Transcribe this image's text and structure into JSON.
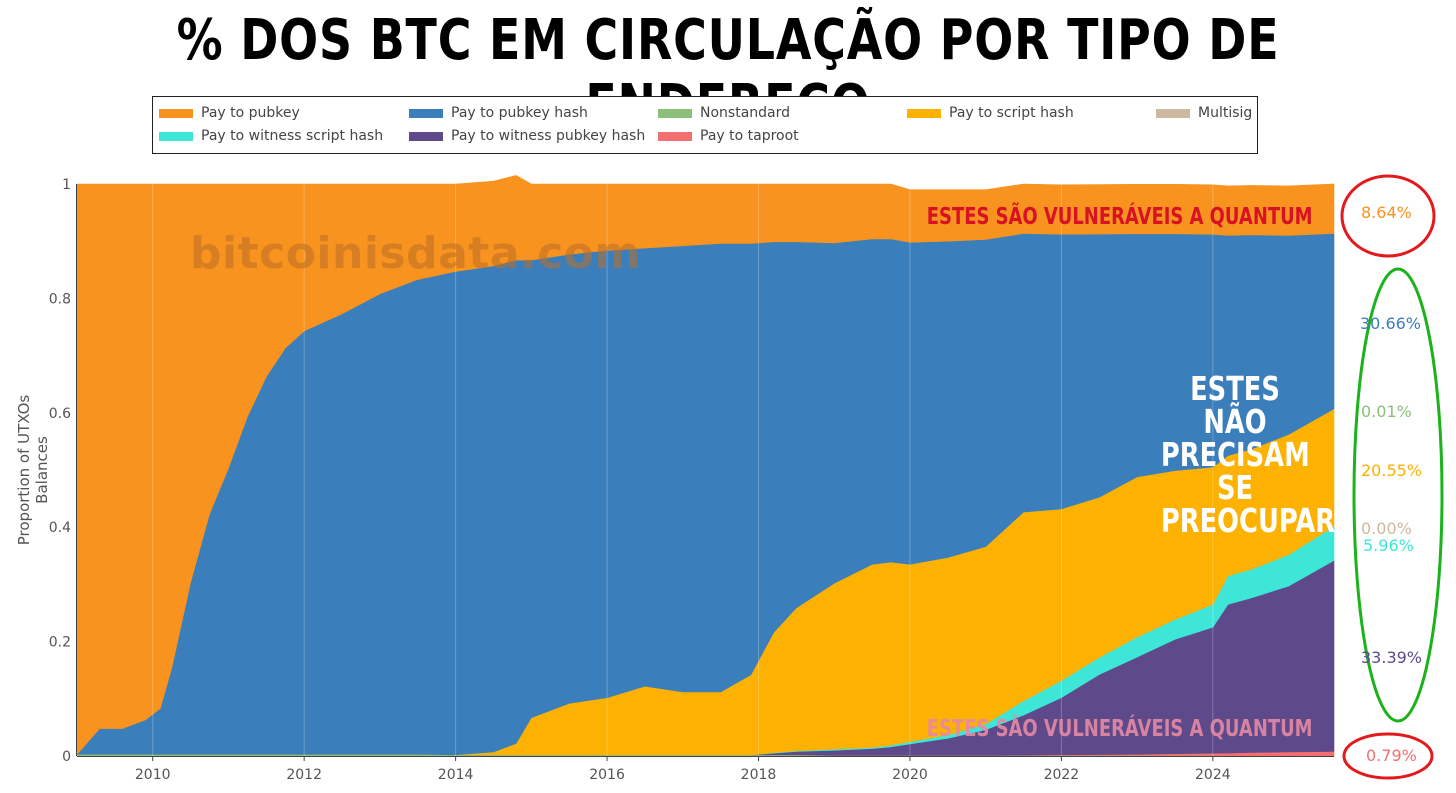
{
  "title": "% DOS BTC EM CIRCULAÇÃO POR TIPO DE ENDEREÇO",
  "watermark": "bitcoinisdata.com",
  "annotations": {
    "top": "ESTES SÃO VULNERÁVEIS A QUANTUM",
    "middle": [
      "ESTES NÃO",
      "PRECISAM",
      "SE",
      "PREOCUPAR"
    ],
    "bottom": "ESTES SÃO VULNERÁVEIS A QUANTUM"
  },
  "end_labels": [
    {
      "text": "8.64%",
      "color": "#f7931e",
      "circle": "red"
    },
    {
      "text": "30.66%",
      "color": "#3a7ebb",
      "circle": "green"
    },
    {
      "text": "0.01%",
      "color": "#8bbf7a",
      "circle": "green"
    },
    {
      "text": "20.55%",
      "color": "#fdb100",
      "circle": "green"
    },
    {
      "text": "0.00%",
      "color": "#cdb8a0",
      "circle": "green"
    },
    {
      "text": "5.96%",
      "color": "#3ee6d8",
      "circle": "green"
    },
    {
      "text": "33.39%",
      "color": "#5e4a8a",
      "circle": "green"
    },
    {
      "text": "0.79%",
      "color": "#f46f6f",
      "circle": "red"
    }
  ],
  "chart_data": {
    "type": "area",
    "stacked": true,
    "normalized": true,
    "title": "% DOS BTC EM CIRCULAÇÃO POR TIPO DE ENDEREÇO",
    "xlabel": "",
    "ylabel": "Proportion of UTXOs Balances",
    "xlim": [
      2009.0,
      2025.6
    ],
    "ylim": [
      0,
      1
    ],
    "x_ticks": [
      "2010",
      "2012",
      "2014",
      "2016",
      "2018",
      "2020",
      "2022",
      "2024"
    ],
    "y_ticks": [
      "0",
      "0.2",
      "0.4",
      "0.6",
      "0.8",
      "1"
    ],
    "legend_position": "top",
    "x": [
      2009.0,
      2009.3,
      2009.6,
      2009.9,
      2010.1,
      2010.25,
      2010.5,
      2010.75,
      2011.0,
      2011.25,
      2011.5,
      2011.75,
      2012.0,
      2012.5,
      2013.0,
      2013.5,
      2014.0,
      2014.5,
      2014.8,
      2015.0,
      2015.5,
      2016.0,
      2016.5,
      2017.0,
      2017.5,
      2017.9,
      2018.2,
      2018.5,
      2019.0,
      2019.5,
      2019.75,
      2020.0,
      2020.5,
      2021.0,
      2021.5,
      2022.0,
      2022.5,
      2023.0,
      2023.5,
      2024.0,
      2024.2,
      2024.5,
      2025.0,
      2025.6
    ],
    "series": [
      {
        "name": "Nonstandard",
        "color": "#8bbf7a",
        "values": [
          0.003,
          0.003,
          0.003,
          0.003,
          0.003,
          0.003,
          0.003,
          0.003,
          0.003,
          0.003,
          0.003,
          0.003,
          0.003,
          0.003,
          0.003,
          0.003,
          0.002,
          0.002,
          0.002,
          0.002,
          0.002,
          0.002,
          0.002,
          0.002,
          0.002,
          0.002,
          0.002,
          0.002,
          0.001,
          0.001,
          0.001,
          0.001,
          0.001,
          0.001,
          0.001,
          0.001,
          0.001,
          0.001,
          0.001,
          0.001,
          0.0001,
          0.0001,
          0.0001,
          0.0001
        ]
      },
      {
        "name": "Pay to taproot",
        "color": "#f46f6f",
        "values": [
          0,
          0,
          0,
          0,
          0,
          0,
          0,
          0,
          0,
          0,
          0,
          0,
          0,
          0,
          0,
          0,
          0,
          0,
          0,
          0,
          0,
          0,
          0,
          0,
          0,
          0,
          0,
          0,
          0,
          0,
          0,
          0,
          0,
          0,
          0.0005,
          0.001,
          0.0015,
          0.002,
          0.003,
          0.004,
          0.005,
          0.006,
          0.007,
          0.0079
        ]
      },
      {
        "name": "Pay to witness pubkey hash",
        "color": "#5e4a8a",
        "values": [
          0,
          0,
          0,
          0,
          0,
          0,
          0,
          0,
          0,
          0,
          0,
          0,
          0,
          0,
          0,
          0,
          0,
          0,
          0,
          0,
          0,
          0,
          0,
          0,
          0,
          0,
          0.003,
          0.006,
          0.009,
          0.012,
          0.015,
          0.02,
          0.03,
          0.045,
          0.07,
          0.1,
          0.14,
          0.17,
          0.2,
          0.22,
          0.26,
          0.27,
          0.29,
          0.3339
        ]
      },
      {
        "name": "Pay to witness script hash",
        "color": "#3ee6d8",
        "values": [
          0,
          0,
          0,
          0,
          0,
          0,
          0,
          0,
          0,
          0,
          0,
          0,
          0,
          0,
          0,
          0,
          0,
          0,
          0,
          0,
          0,
          0,
          0,
          0,
          0,
          0,
          0.001,
          0.001,
          0.002,
          0.002,
          0.003,
          0.004,
          0.006,
          0.01,
          0.025,
          0.03,
          0.03,
          0.035,
          0.035,
          0.04,
          0.05,
          0.05,
          0.055,
          0.0596
        ]
      },
      {
        "name": "Multisig",
        "color": "#cdb8a0",
        "values": [
          0,
          0,
          0,
          0,
          0,
          0,
          0,
          0,
          0,
          0,
          0,
          0,
          0,
          0,
          0,
          0,
          0,
          0,
          0,
          0,
          0,
          0,
          0,
          0,
          0,
          0,
          0,
          0,
          0,
          0,
          0,
          0,
          0,
          0,
          0,
          0,
          0,
          0,
          0,
          0,
          0,
          0,
          0,
          0
        ]
      },
      {
        "name": "Pay to script hash",
        "color": "#fdb100",
        "values": [
          0,
          0,
          0,
          0,
          0,
          0,
          0,
          0,
          0,
          0,
          0,
          0,
          0,
          0,
          0,
          0,
          0,
          0.005,
          0.02,
          0.065,
          0.09,
          0.1,
          0.12,
          0.11,
          0.11,
          0.14,
          0.21,
          0.25,
          0.29,
          0.32,
          0.32,
          0.31,
          0.31,
          0.31,
          0.33,
          0.3,
          0.28,
          0.28,
          0.26,
          0.24,
          0.21,
          0.21,
          0.21,
          0.2055
        ]
      },
      {
        "name": "Pay to pubkey hash",
        "color": "#3a7ebb",
        "values": [
          0,
          0.045,
          0.045,
          0.06,
          0.08,
          0.15,
          0.3,
          0.42,
          0.5,
          0.59,
          0.66,
          0.71,
          0.74,
          0.77,
          0.805,
          0.83,
          0.845,
          0.85,
          0.845,
          0.8,
          0.785,
          0.782,
          0.766,
          0.78,
          0.784,
          0.754,
          0.683,
          0.64,
          0.595,
          0.569,
          0.565,
          0.563,
          0.553,
          0.537,
          0.487,
          0.48,
          0.46,
          0.425,
          0.414,
          0.407,
          0.385,
          0.375,
          0.348,
          0.3066
        ]
      },
      {
        "name": "Pay to pubkey",
        "color": "#f7931e",
        "values": [
          0.997,
          0.952,
          0.952,
          0.937,
          0.917,
          0.847,
          0.697,
          0.577,
          0.497,
          0.407,
          0.337,
          0.287,
          0.257,
          0.227,
          0.192,
          0.167,
          0.153,
          0.148,
          0.148,
          0.133,
          0.123,
          0.116,
          0.112,
          0.108,
          0.104,
          0.104,
          0.101,
          0.101,
          0.103,
          0.096,
          0.096,
          0.092,
          0.09,
          0.087,
          0.0865,
          0.0865,
          0.0865,
          0.0865,
          0.0865,
          0.0865,
          0.0865,
          0.0865,
          0.0865,
          0.0864
        ]
      }
    ]
  },
  "legend": [
    {
      "label": "Pay to pubkey",
      "color": "#f7931e"
    },
    {
      "label": "Pay to pubkey hash",
      "color": "#3a7ebb"
    },
    {
      "label": "Nonstandard",
      "color": "#8bbf7a"
    },
    {
      "label": "Pay to script hash",
      "color": "#fdb100"
    },
    {
      "label": "Multisig",
      "color": "#cdb8a0"
    },
    {
      "label": "Pay to witness script hash",
      "color": "#3ee6d8"
    },
    {
      "label": "Pay to witness pubkey hash",
      "color": "#5e4a8a"
    },
    {
      "label": "Pay to taproot",
      "color": "#f46f6f"
    }
  ]
}
